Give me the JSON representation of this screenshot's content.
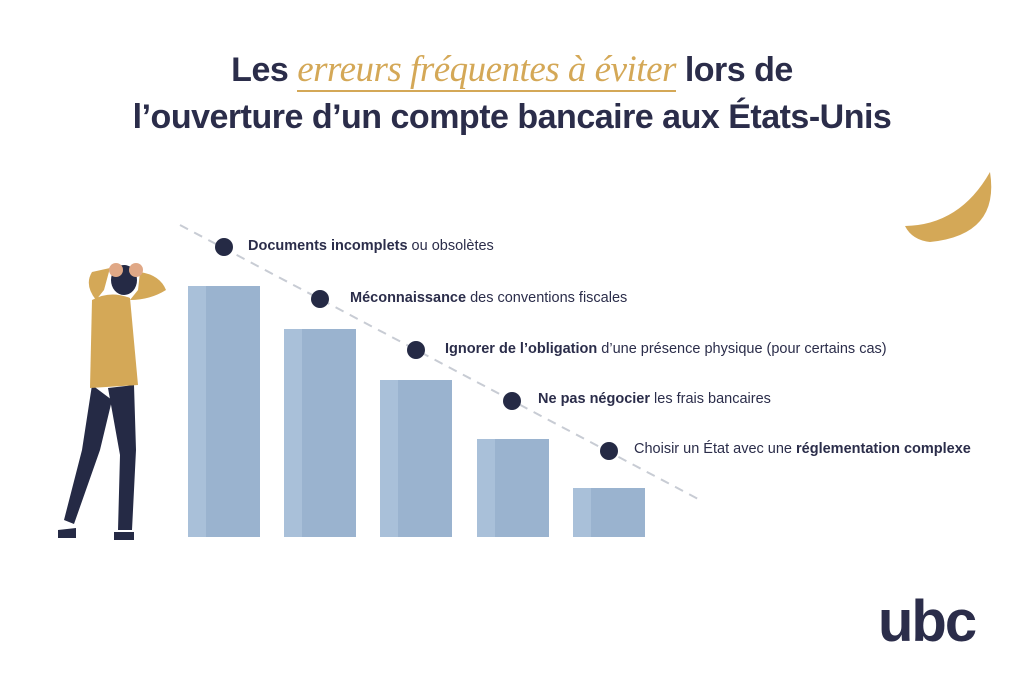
{
  "title": {
    "before": "Les ",
    "highlight": "erreurs fréquentes à éviter",
    "after": " lors de",
    "line2": "l’ouverture d’un compte bancaire aux États-Unis"
  },
  "items": [
    {
      "parts": [
        {
          "text": "Documents incomplets",
          "bold": true
        },
        {
          "text": " ou obsolètes",
          "bold": false
        }
      ]
    },
    {
      "parts": [
        {
          "text": "Méconnaissance",
          "bold": true
        },
        {
          "text": " des conventions fiscales",
          "bold": false
        }
      ]
    },
    {
      "parts": [
        {
          "text": "Ignorer de l’obligation",
          "bold": true
        },
        {
          "text": " d’une présence physique (pour certains cas)",
          "bold": false
        }
      ]
    },
    {
      "parts": [
        {
          "text": "Ne pas négocier",
          "bold": true
        },
        {
          "text": " les frais bancaires",
          "bold": false
        }
      ]
    },
    {
      "parts": [
        {
          "text": "Choisir un État avec une ",
          "bold": false
        },
        {
          "text": "réglementation complexe",
          "bold": true
        }
      ]
    }
  ],
  "logo": "ubc"
}
